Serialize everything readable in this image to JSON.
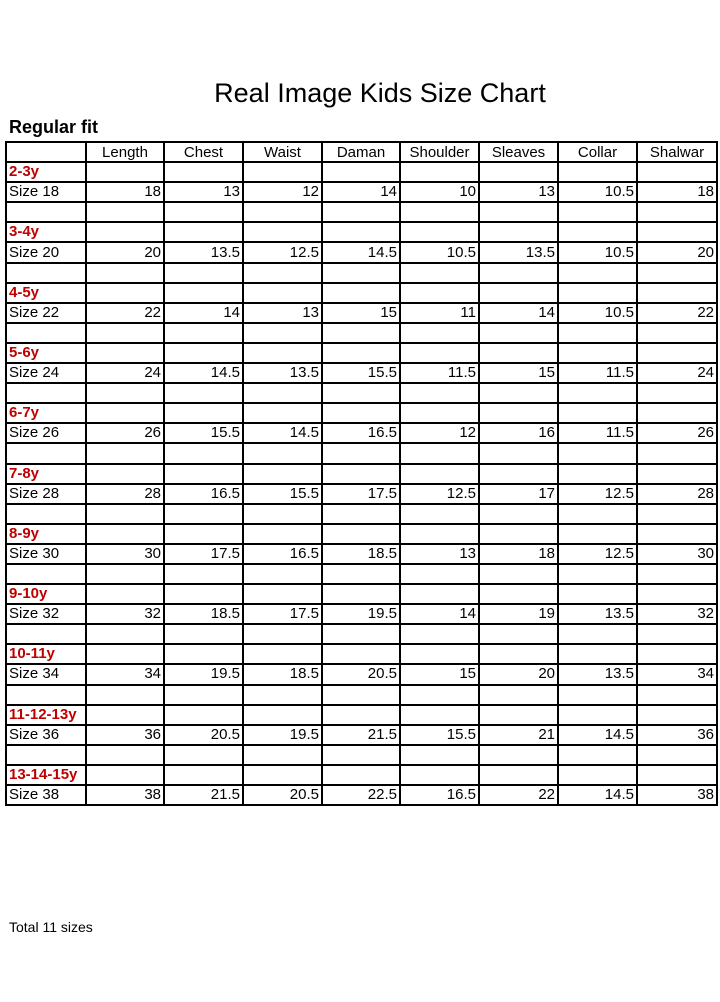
{
  "title": "Real Image Kids Size Chart",
  "subtitle": "Regular fit",
  "accent_color": "#c00000",
  "columns": [
    "",
    "Length",
    "Chest",
    "Waist",
    "Daman",
    "Shoulder",
    "Sleaves",
    "Collar",
    "Shalwar"
  ],
  "groups": [
    {
      "age": "2-3y",
      "size": "Size 18",
      "values": [
        "18",
        "13",
        "12",
        "14",
        "10",
        "13",
        "10.5",
        "18"
      ]
    },
    {
      "age": "3-4y",
      "size": "Size 20",
      "values": [
        "20",
        "13.5",
        "12.5",
        "14.5",
        "10.5",
        "13.5",
        "10.5",
        "20"
      ]
    },
    {
      "age": "4-5y",
      "size": "Size 22",
      "values": [
        "22",
        "14",
        "13",
        "15",
        "11",
        "14",
        "10.5",
        "22"
      ]
    },
    {
      "age": "5-6y",
      "size": "Size 24",
      "values": [
        "24",
        "14.5",
        "13.5",
        "15.5",
        "11.5",
        "15",
        "11.5",
        "24"
      ]
    },
    {
      "age": "6-7y",
      "size": "Size 26",
      "values": [
        "26",
        "15.5",
        "14.5",
        "16.5",
        "12",
        "16",
        "11.5",
        "26"
      ]
    },
    {
      "age": "7-8y",
      "size": "Size 28",
      "values": [
        "28",
        "16.5",
        "15.5",
        "17.5",
        "12.5",
        "17",
        "12.5",
        "28"
      ]
    },
    {
      "age": "8-9y",
      "size": "Size 30",
      "values": [
        "30",
        "17.5",
        "16.5",
        "18.5",
        "13",
        "18",
        "12.5",
        "30"
      ]
    },
    {
      "age": "9-10y",
      "size": "Size 32",
      "values": [
        "32",
        "18.5",
        "17.5",
        "19.5",
        "14",
        "19",
        "13.5",
        "32"
      ]
    },
    {
      "age": "10-11y",
      "size": "Size 34",
      "values": [
        "34",
        "19.5",
        "18.5",
        "20.5",
        "15",
        "20",
        "13.5",
        "34"
      ]
    },
    {
      "age": "11-12-13y",
      "size": "Size 36",
      "values": [
        "36",
        "20.5",
        "19.5",
        "21.5",
        "15.5",
        "21",
        "14.5",
        "36"
      ]
    },
    {
      "age": "13-14-15y",
      "size": "Size 38",
      "values": [
        "38",
        "21.5",
        "20.5",
        "22.5",
        "16.5",
        "22",
        "14.5",
        "38"
      ]
    }
  ],
  "footer": "Total 11 sizes"
}
